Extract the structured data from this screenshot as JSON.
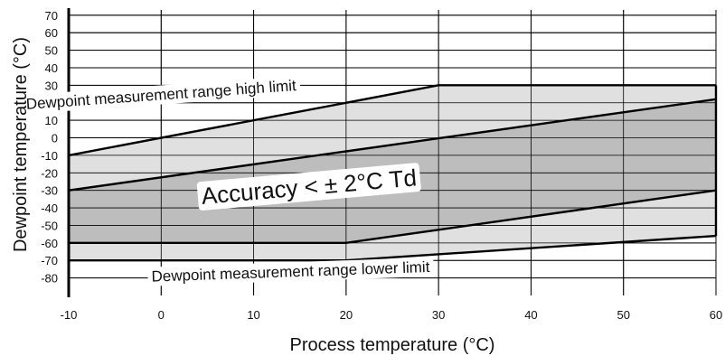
{
  "chart_data": {
    "type": "area",
    "title": "",
    "xlabel": "Process temperature (°C)",
    "ylabel": "Dewpoint temperature (°C)",
    "xlim": [
      -10,
      60
    ],
    "ylim": [
      -90,
      73
    ],
    "x_ticks": [
      -10,
      0,
      10,
      20,
      30,
      40,
      50,
      60
    ],
    "y_ticks": [
      70,
      60,
      50,
      40,
      30,
      20,
      10,
      0,
      -10,
      -20,
      -30,
      -40,
      -50,
      -60,
      -70,
      -80
    ],
    "grid": true,
    "colors": {
      "measurement_range_fill": "#e0e0e0",
      "accuracy_fill": "#bdbdbd",
      "lines": "#000000",
      "grid": "#000000"
    },
    "regions": [
      {
        "role": "measurement-range",
        "points": [
          [
            -10,
            -10
          ],
          [
            30,
            30
          ],
          [
            60,
            30
          ],
          [
            60,
            -56
          ],
          [
            20,
            -70
          ],
          [
            -10,
            -70
          ]
        ]
      },
      {
        "role": "accuracy-band",
        "points": [
          [
            -10,
            -30
          ],
          [
            60,
            22
          ],
          [
            60,
            -30
          ],
          [
            20,
            -60
          ],
          [
            -10,
            -60
          ]
        ]
      }
    ],
    "lines": [
      {
        "role": "high-limit",
        "points": [
          [
            -10,
            -10
          ],
          [
            30,
            30
          ],
          [
            60,
            30
          ]
        ],
        "width": 2.4
      },
      {
        "role": "low-limit",
        "points": [
          [
            -10,
            -70
          ],
          [
            20,
            -70
          ],
          [
            60,
            -56
          ]
        ],
        "width": 2.4
      },
      {
        "role": "accuracy-upper",
        "points": [
          [
            -10,
            -30
          ],
          [
            60,
            22
          ]
        ],
        "width": 2.4
      },
      {
        "role": "accuracy-lower",
        "points": [
          [
            -10,
            -60
          ],
          [
            20,
            -60
          ],
          [
            60,
            -30
          ]
        ],
        "width": 2.4
      }
    ],
    "border_rect": {
      "x": [
        -10,
        60
      ],
      "y": [
        -70,
        30
      ]
    },
    "annotations": [
      {
        "id": "high-limit-label",
        "text": "Dewpoint measurement range high limit",
        "x": 0,
        "y": 24,
        "angle": -4,
        "size": 17
      },
      {
        "id": "accuracy-label",
        "text": "Accuracy < ± 2°C Td",
        "x": 16,
        "y": -29,
        "angle": -5,
        "size": 26
      },
      {
        "id": "low-limit-label",
        "text": "Dewpoint measurement range lower limit",
        "x": 14,
        "y": -77,
        "angle": -2,
        "size": 17
      }
    ]
  }
}
